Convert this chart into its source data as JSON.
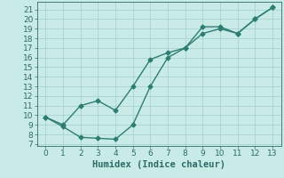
{
  "title": "",
  "xlabel": "Humidex (Indice chaleur)",
  "bg_color": "#c8ebe8",
  "grid_color": "#a8d4d0",
  "line_color": "#2e7d72",
  "line1_x": [
    0,
    1,
    2,
    3,
    4,
    5,
    6,
    7,
    8,
    9,
    10,
    11,
    12,
    13
  ],
  "line1_y": [
    9.8,
    9.0,
    11.0,
    11.5,
    10.5,
    13.0,
    15.8,
    16.5,
    17.0,
    19.2,
    19.2,
    18.5,
    20.0,
    21.2
  ],
  "line2_x": [
    0,
    1,
    2,
    3,
    4,
    5,
    6,
    7,
    8,
    9,
    10,
    11,
    12,
    13
  ],
  "line2_y": [
    9.8,
    8.8,
    7.7,
    7.6,
    7.5,
    9.0,
    13.0,
    16.0,
    17.0,
    18.5,
    19.0,
    18.5,
    20.0,
    21.2
  ],
  "xlim": [
    -0.5,
    13.5
  ],
  "ylim": [
    6.8,
    21.8
  ],
  "yticks": [
    7,
    8,
    9,
    10,
    11,
    12,
    13,
    14,
    15,
    16,
    17,
    18,
    19,
    20,
    21
  ],
  "xticks": [
    0,
    1,
    2,
    3,
    4,
    5,
    6,
    7,
    8,
    9,
    10,
    11,
    12,
    13
  ],
  "label_fontsize": 7.5,
  "tick_fontsize": 6.5,
  "text_color": "#2e6b65",
  "line_width": 1.0,
  "marker_size": 2.5
}
